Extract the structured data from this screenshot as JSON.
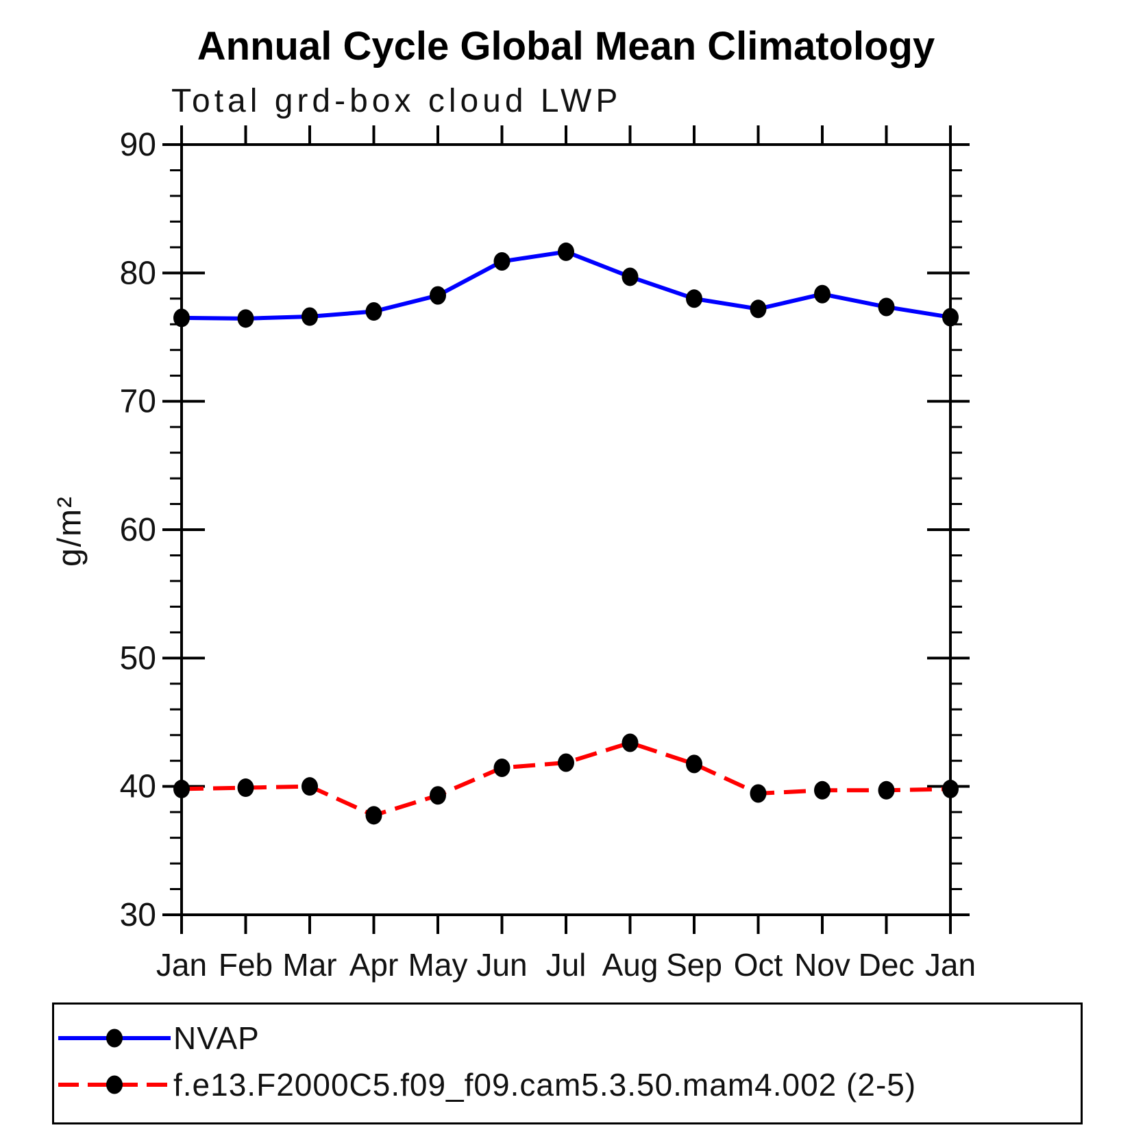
{
  "chart_data": {
    "type": "line",
    "title": "Annual Cycle Global Mean Climatology",
    "subtitle": "Total grd-box cloud LWP",
    "ylabel": "g/m²",
    "xlabel": "",
    "categories": [
      "Jan",
      "Feb",
      "Mar",
      "Apr",
      "May",
      "Jun",
      "Jul",
      "Aug",
      "Sep",
      "Oct",
      "Nov",
      "Dec",
      "Jan"
    ],
    "ylim": [
      30,
      90
    ],
    "ytick_major": 10,
    "ytick_minor": 2,
    "grid": false,
    "legend_position": "bottom-left",
    "frame_color": "#000000",
    "series": [
      {
        "name": "NVAP",
        "color": "#0000ff",
        "line_style": "solid",
        "marker": "filled-circle",
        "marker_color": "#000000",
        "values": [
          76.5,
          76.45,
          76.6,
          77.0,
          78.25,
          80.9,
          81.65,
          79.7,
          78.0,
          77.2,
          78.35,
          77.35,
          76.55
        ]
      },
      {
        "name": "f.e13.F2000C5.f09_f09.cam5.3.50.mam4.002 (2-5)",
        "color": "#ff0000",
        "line_style": "dashed",
        "marker": "filled-circle",
        "marker_color": "#000000",
        "values": [
          39.8,
          39.9,
          40.0,
          37.75,
          39.3,
          41.45,
          41.85,
          43.4,
          41.75,
          39.45,
          39.7,
          39.7,
          39.8
        ]
      }
    ]
  }
}
